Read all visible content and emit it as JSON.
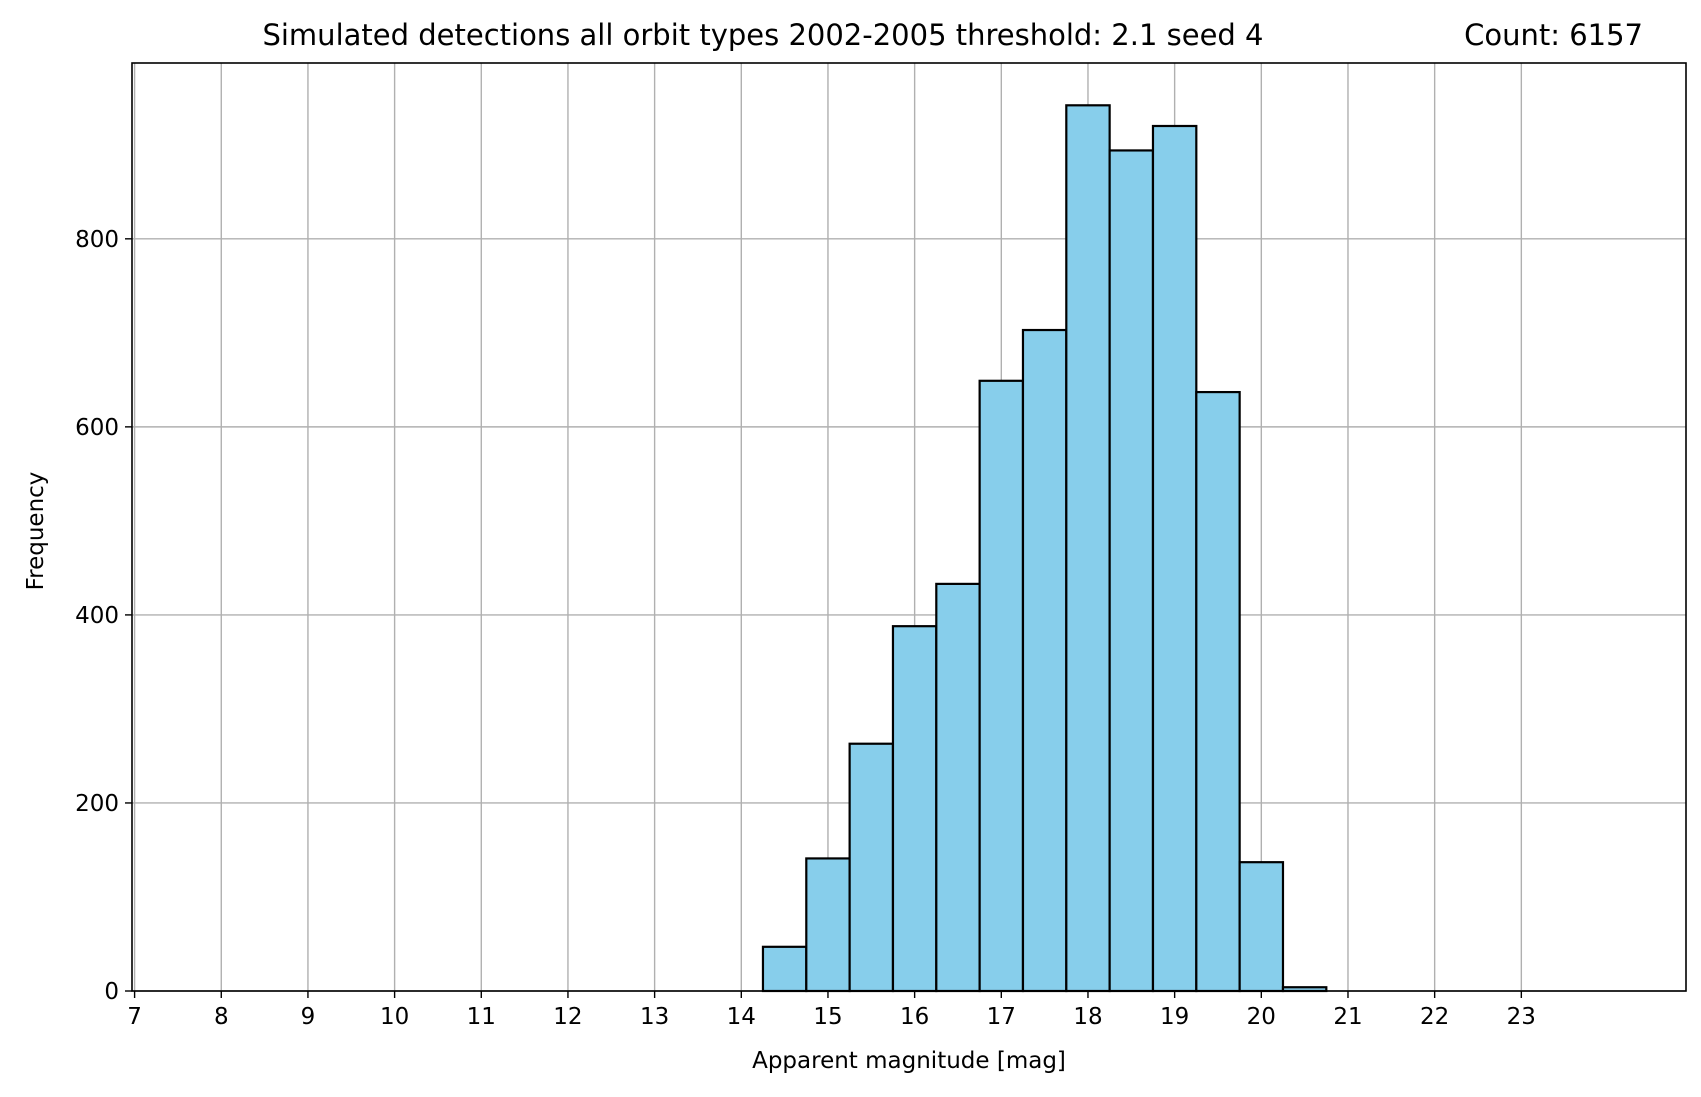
{
  "chart_data": {
    "type": "bar",
    "title": "Simulated detections all orbit types 2002-2005  threshold: 2.1 seed 4",
    "count_label": "Count: 6157",
    "xlabel": "Apparent magnitude [mag]",
    "ylabel": "Frequency",
    "xlim": [
      6.97,
      24.9
    ],
    "ylim": [
      0,
      987
    ],
    "x_ticks": [
      7,
      8,
      9,
      10,
      11,
      12,
      13,
      14,
      15,
      16,
      17,
      18,
      19,
      20,
      21,
      22,
      23
    ],
    "y_ticks": [
      0,
      200,
      400,
      600,
      800
    ],
    "grid": true,
    "bin_width": 0.5,
    "bins": [
      {
        "start": 14.25,
        "value": 47
      },
      {
        "start": 14.75,
        "value": 141
      },
      {
        "start": 15.25,
        "value": 263
      },
      {
        "start": 15.75,
        "value": 388
      },
      {
        "start": 16.25,
        "value": 433
      },
      {
        "start": 16.75,
        "value": 649
      },
      {
        "start": 17.25,
        "value": 703
      },
      {
        "start": 17.75,
        "value": 942
      },
      {
        "start": 18.25,
        "value": 894
      },
      {
        "start": 18.75,
        "value": 920
      },
      {
        "start": 19.25,
        "value": 637
      },
      {
        "start": 19.75,
        "value": 137
      },
      {
        "start": 20.25,
        "value": 4
      }
    ],
    "colors": {
      "bar_fill": "#87ceeb",
      "bar_edge": "#000000",
      "grid": "#b0b0b0",
      "axis": "#000000"
    }
  }
}
